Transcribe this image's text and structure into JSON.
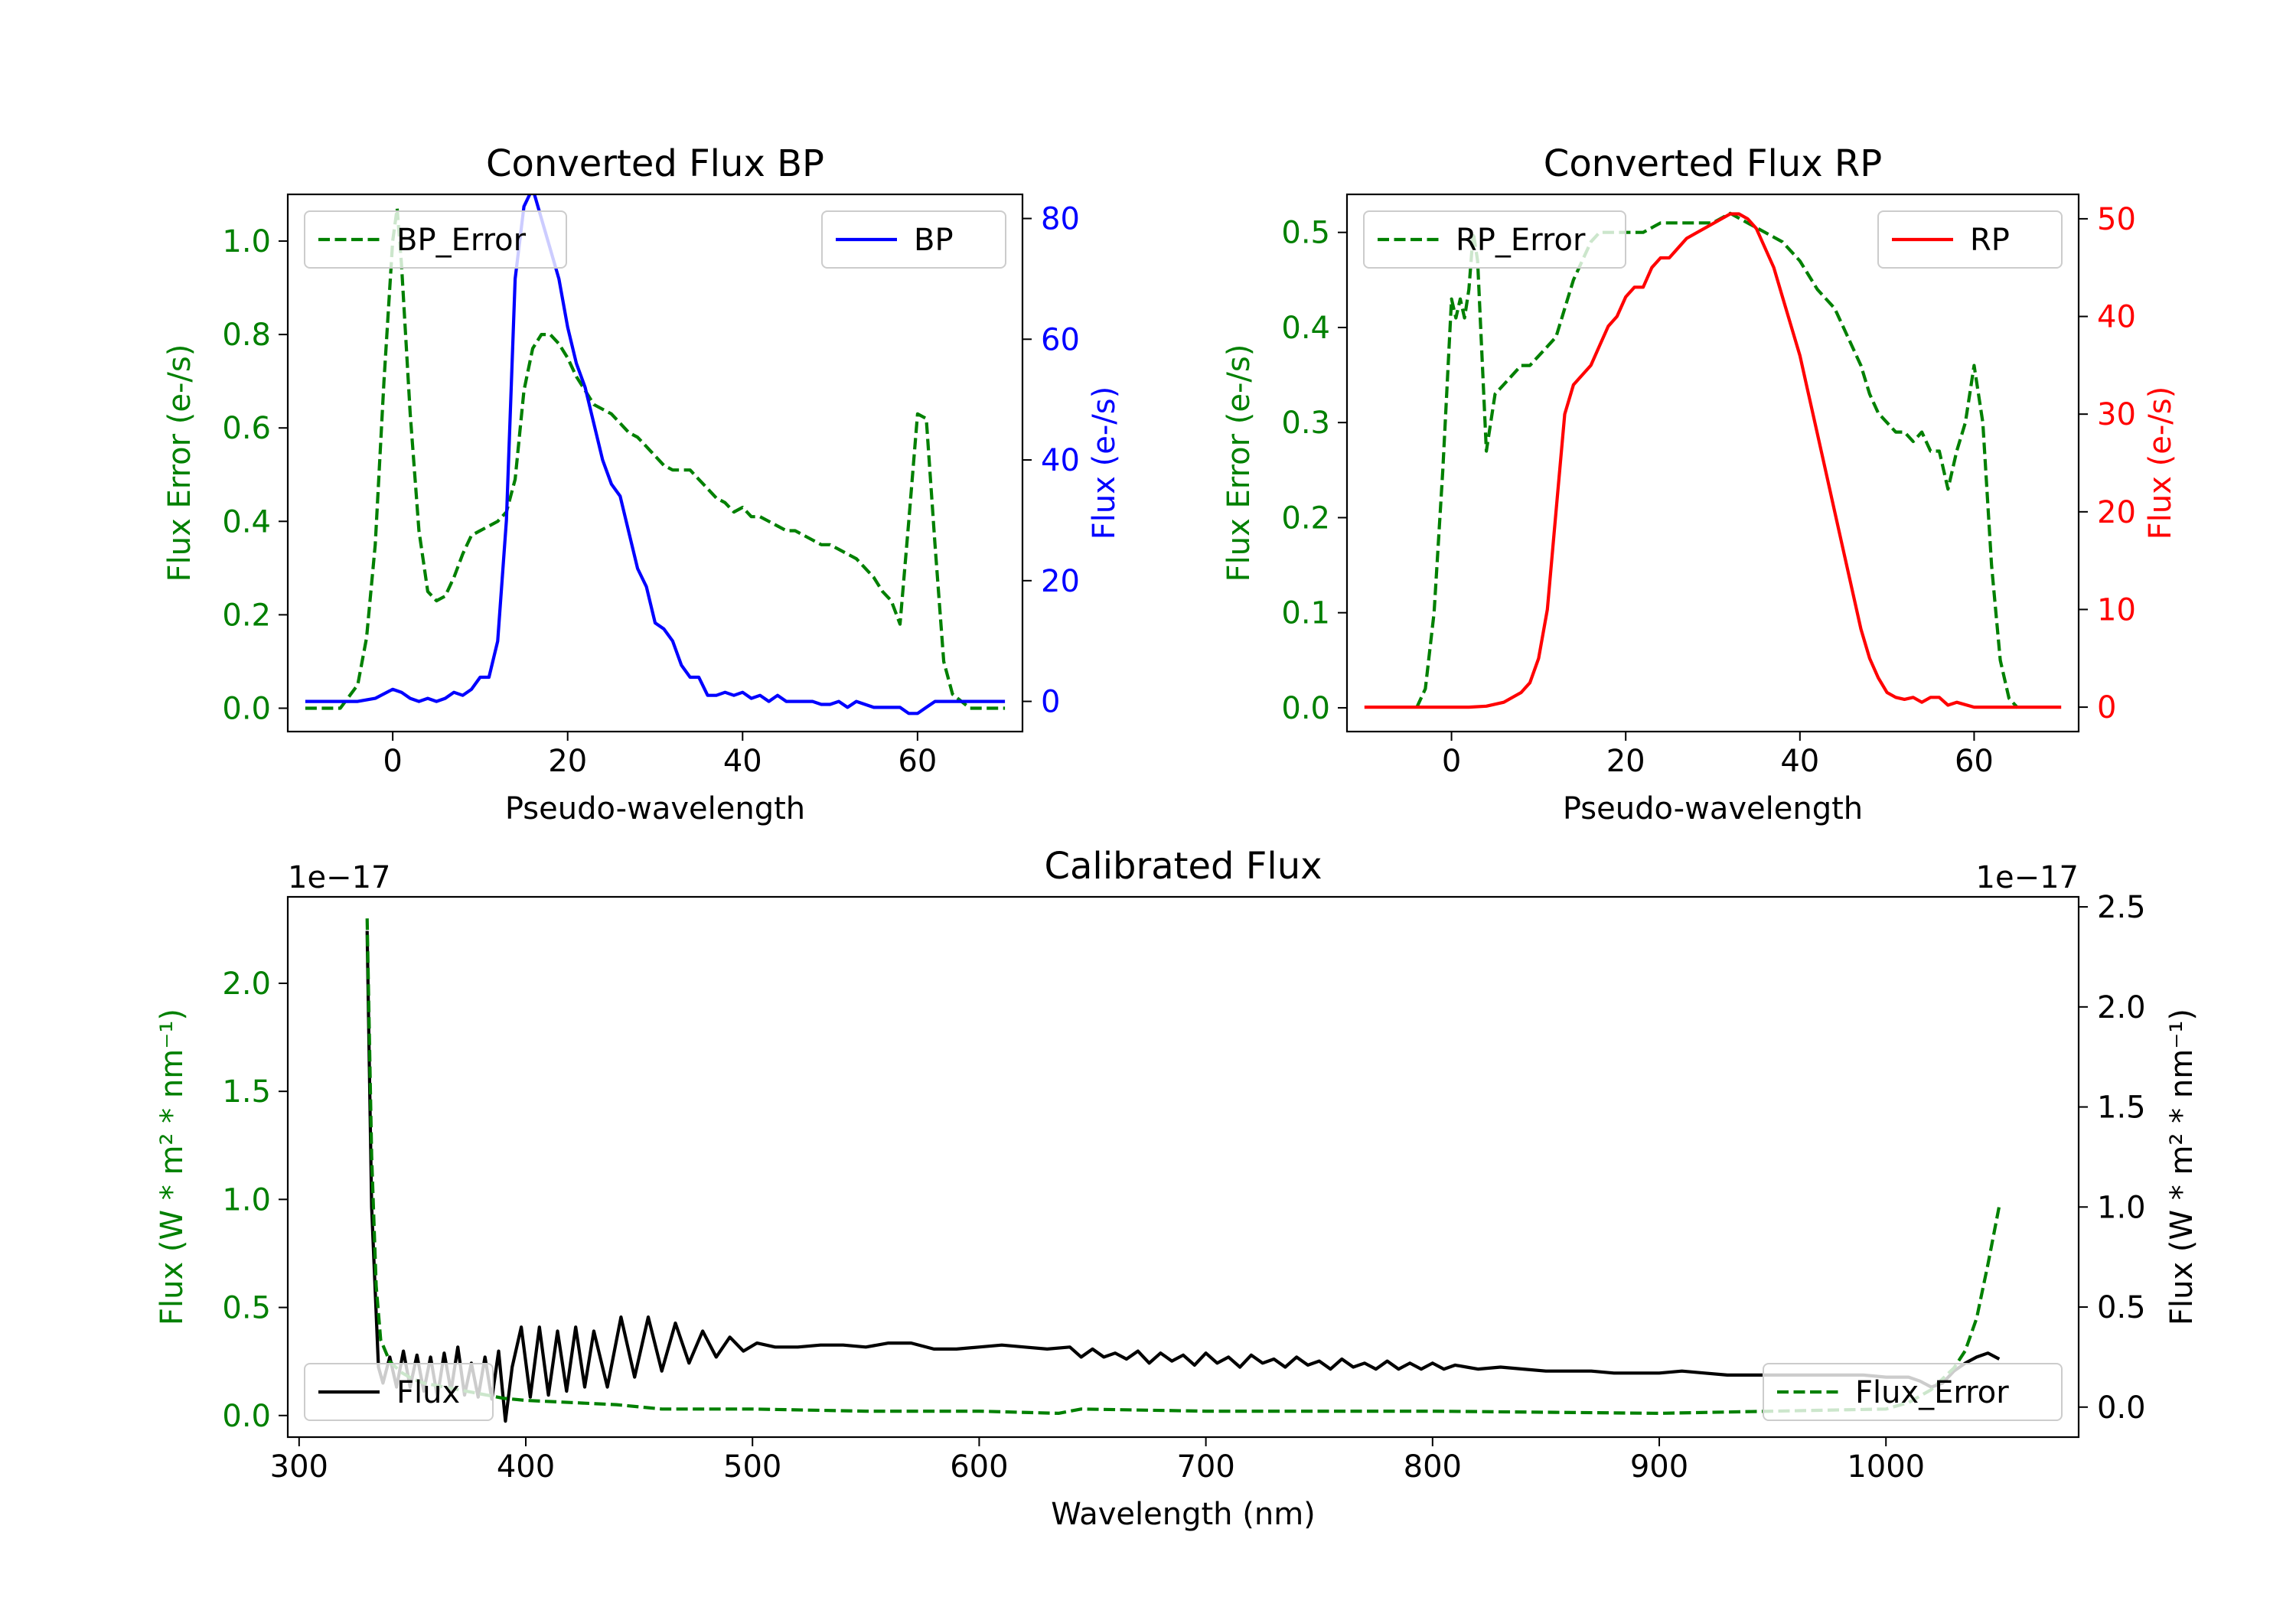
{
  "colors": {
    "error": "#008000",
    "bp": "#0000ff",
    "rp": "#ff0000",
    "flux": "#000000",
    "axis": "#000000"
  },
  "chart_data": [
    {
      "id": "bp",
      "type": "line",
      "title": "Converted Flux BP",
      "xlabel": "Pseudo-wavelength",
      "ylabel_left": "Flux Error (e-/s)",
      "ylabel_right": "Flux (e-/s)",
      "xlim": [
        -12,
        72
      ],
      "ylim_left": [
        -0.05,
        1.1
      ],
      "ylim_right": [
        -5,
        84
      ],
      "xticks": [
        0,
        20,
        40,
        60
      ],
      "xtick_labels": [
        "0",
        "20",
        "40",
        "60"
      ],
      "yticks_left": [
        0.0,
        0.2,
        0.4,
        0.6,
        0.8,
        1.0
      ],
      "ytick_labels_left": [
        "0.0",
        "0.2",
        "0.4",
        "0.6",
        "0.8",
        "1.0"
      ],
      "yticks_right": [
        0,
        20,
        40,
        60,
        80
      ],
      "ytick_labels_right": [
        "0",
        "20",
        "40",
        "60",
        "80"
      ],
      "series": [
        {
          "name": "BP_Error",
          "axis": "left",
          "style": "dashed",
          "color": "#008000",
          "x": [
            -10,
            -6,
            -4,
            -3,
            -2,
            -1,
            0,
            0.5,
            1,
            2,
            3,
            4,
            5,
            6,
            7,
            8,
            9,
            10,
            11,
            12,
            13,
            14,
            15,
            16,
            17,
            18,
            19,
            20,
            21,
            22,
            23,
            24,
            25,
            26,
            27,
            28,
            29,
            30,
            31,
            32,
            33,
            34,
            35,
            36,
            37,
            38,
            39,
            40,
            41,
            42,
            43,
            44,
            45,
            46,
            47,
            48,
            49,
            50,
            51,
            52,
            53,
            54,
            55,
            56,
            57,
            58,
            59,
            60,
            61,
            62,
            63,
            64,
            66,
            70
          ],
          "y": [
            0.0,
            0.0,
            0.05,
            0.15,
            0.35,
            0.7,
            1.0,
            1.07,
            0.95,
            0.63,
            0.38,
            0.25,
            0.23,
            0.24,
            0.28,
            0.33,
            0.37,
            0.38,
            0.39,
            0.4,
            0.42,
            0.49,
            0.68,
            0.77,
            0.8,
            0.8,
            0.78,
            0.75,
            0.71,
            0.68,
            0.65,
            0.64,
            0.63,
            0.61,
            0.59,
            0.58,
            0.56,
            0.54,
            0.52,
            0.51,
            0.51,
            0.51,
            0.49,
            0.47,
            0.45,
            0.44,
            0.42,
            0.43,
            0.41,
            0.41,
            0.4,
            0.39,
            0.38,
            0.38,
            0.37,
            0.36,
            0.35,
            0.35,
            0.34,
            0.33,
            0.32,
            0.3,
            0.28,
            0.25,
            0.23,
            0.18,
            0.4,
            0.63,
            0.62,
            0.35,
            0.1,
            0.03,
            0.0,
            0.0
          ]
        },
        {
          "name": "BP",
          "axis": "right",
          "style": "solid",
          "color": "#0000ff",
          "x": [
            -10,
            -4,
            -2,
            0,
            1,
            2,
            3,
            4,
            5,
            6,
            7,
            8,
            9,
            10,
            11,
            12,
            13,
            14,
            15,
            16,
            17,
            18,
            19,
            20,
            21,
            22,
            23,
            24,
            25,
            26,
            27,
            28,
            29,
            30,
            31,
            32,
            33,
            34,
            35,
            36,
            37,
            38,
            39,
            40,
            41,
            42,
            43,
            44,
            45,
            46,
            47,
            48,
            49,
            50,
            51,
            52,
            53,
            54,
            55,
            56,
            57,
            58,
            59,
            60,
            61,
            62,
            64,
            66,
            70
          ],
          "y": [
            0,
            0,
            0.5,
            2,
            1.5,
            0.5,
            0,
            0.5,
            0,
            0.5,
            1.5,
            1,
            2,
            4,
            4,
            10,
            30,
            70,
            82,
            85,
            80,
            75,
            70,
            62,
            56,
            52,
            46,
            40,
            36,
            34,
            28,
            22,
            19,
            13,
            12,
            10,
            6,
            4,
            4,
            1,
            1,
            1.5,
            1,
            1.5,
            0.5,
            1,
            0,
            1,
            0,
            0,
            0,
            0,
            -0.5,
            -0.5,
            0,
            -1,
            0,
            -0.5,
            -1,
            -1,
            -1,
            -1,
            -2,
            -2,
            -1,
            0,
            0,
            0,
            0
          ]
        }
      ],
      "legend": [
        {
          "label": "BP_Error",
          "position": "upper-left"
        },
        {
          "label": "BP",
          "position": "upper-right"
        }
      ]
    },
    {
      "id": "rp",
      "type": "line",
      "title": "Converted Flux RP",
      "xlabel": "Pseudo-wavelength",
      "ylabel_left": "Flux Error (e-/s)",
      "ylabel_right": "Flux (e-/s)",
      "xlim": [
        -12,
        72
      ],
      "ylim_left": [
        -0.025,
        0.54
      ],
      "ylim_right": [
        -2.5,
        52.5
      ],
      "xticks": [
        0,
        20,
        40,
        60
      ],
      "xtick_labels": [
        "0",
        "20",
        "40",
        "60"
      ],
      "yticks_left": [
        0.0,
        0.1,
        0.2,
        0.3,
        0.4,
        0.5
      ],
      "ytick_labels_left": [
        "0.0",
        "0.1",
        "0.2",
        "0.3",
        "0.4",
        "0.5"
      ],
      "yticks_right": [
        0,
        10,
        20,
        30,
        40,
        50
      ],
      "ytick_labels_right": [
        "0",
        "10",
        "20",
        "30",
        "40",
        "50"
      ],
      "series": [
        {
          "name": "RP_Error",
          "axis": "left",
          "style": "dashed",
          "color": "#008000",
          "x": [
            -4,
            -3,
            -2,
            -1,
            0,
            0.5,
            1,
            1.5,
            2,
            2.5,
            3,
            4,
            5,
            6,
            7,
            8,
            9,
            10,
            11,
            12,
            13,
            14,
            15,
            16,
            17,
            18,
            19,
            20,
            22,
            24,
            26,
            28,
            30,
            32,
            34,
            36,
            38,
            40,
            42,
            44,
            45,
            46,
            47,
            48,
            49,
            50,
            51,
            52,
            53,
            54,
            55,
            56,
            57,
            58,
            59,
            60,
            61,
            62,
            63,
            64,
            65
          ],
          "y": [
            0.0,
            0.02,
            0.1,
            0.25,
            0.43,
            0.41,
            0.43,
            0.41,
            0.44,
            0.5,
            0.47,
            0.27,
            0.33,
            0.34,
            0.35,
            0.36,
            0.36,
            0.37,
            0.38,
            0.39,
            0.42,
            0.45,
            0.47,
            0.49,
            0.5,
            0.5,
            0.5,
            0.5,
            0.5,
            0.51,
            0.51,
            0.51,
            0.51,
            0.52,
            0.51,
            0.5,
            0.49,
            0.47,
            0.44,
            0.42,
            0.4,
            0.38,
            0.36,
            0.33,
            0.31,
            0.3,
            0.29,
            0.29,
            0.28,
            0.29,
            0.27,
            0.27,
            0.23,
            0.27,
            0.3,
            0.36,
            0.3,
            0.15,
            0.05,
            0.01,
            0.0
          ]
        },
        {
          "name": "RP",
          "axis": "right",
          "style": "solid",
          "color": "#ff0000",
          "x": [
            -10,
            -5,
            0,
            2,
            4,
            6,
            7,
            8,
            9,
            10,
            11,
            12,
            13,
            14,
            15,
            16,
            17,
            18,
            19,
            20,
            21,
            22,
            23,
            24,
            25,
            26,
            27,
            28,
            29,
            30,
            31,
            32,
            33,
            34,
            35,
            36,
            37,
            38,
            39,
            40,
            41,
            42,
            43,
            44,
            45,
            46,
            47,
            48,
            49,
            50,
            51,
            52,
            53,
            54,
            55,
            56,
            57,
            58,
            60,
            62,
            64,
            66,
            70
          ],
          "y": [
            0,
            0,
            0,
            0,
            0.1,
            0.5,
            1,
            1.5,
            2.5,
            5,
            10,
            20,
            30,
            33,
            34,
            35,
            37,
            39,
            40,
            42,
            43,
            43,
            45,
            46,
            46,
            47,
            48,
            48.5,
            49,
            49.5,
            50,
            50.5,
            50.5,
            50,
            49,
            47,
            45,
            42,
            39,
            36,
            32,
            28,
            24,
            20,
            16,
            12,
            8,
            5,
            3,
            1.5,
            1,
            0.8,
            1,
            0.5,
            1,
            1,
            0.2,
            0.5,
            0,
            0,
            0,
            0,
            0
          ]
        }
      ],
      "legend": [
        {
          "label": "RP_Error",
          "position": "upper-left"
        },
        {
          "label": "RP",
          "position": "upper-right"
        }
      ]
    },
    {
      "id": "cal",
      "type": "line",
      "title": "Calibrated Flux",
      "xlabel": "Wavelength (nm)",
      "ylabel_left": "Flux (W * m² * nm⁻¹)",
      "ylabel_right": "Flux (W * m² * nm⁻¹)",
      "offset_label_left": "1e−17",
      "offset_label_right": "1e−17",
      "scale": 1e-17,
      "xlim": [
        295,
        1085
      ],
      "ylim_left": [
        -0.1,
        2.4
      ],
      "ylim_right": [
        -0.15,
        2.55
      ],
      "xticks": [
        300,
        400,
        500,
        600,
        700,
        800,
        900,
        1000
      ],
      "xtick_labels": [
        "300",
        "400",
        "500",
        "600",
        "700",
        "800",
        "900",
        "1000"
      ],
      "yticks_left": [
        0.0,
        0.5,
        1.0,
        1.5,
        2.0
      ],
      "ytick_labels_left": [
        "0.0",
        "0.5",
        "1.0",
        "1.5",
        "2.0"
      ],
      "yticks_right": [
        0.0,
        0.5,
        1.0,
        1.5,
        2.0,
        2.5
      ],
      "ytick_labels_right": [
        "0.0",
        "0.5",
        "1.0",
        "1.5",
        "2.0",
        "2.5"
      ],
      "series": [
        {
          "name": "Flux",
          "axis": "right",
          "style": "solid",
          "color": "#000000",
          "x": [
            330,
            332,
            335,
            337,
            340,
            343,
            346,
            349,
            352,
            355,
            358,
            361,
            364,
            367,
            370,
            373,
            376,
            379,
            382,
            385,
            388,
            391,
            394,
            398,
            402,
            406,
            410,
            414,
            418,
            422,
            426,
            430,
            436,
            442,
            448,
            454,
            460,
            466,
            472,
            478,
            484,
            490,
            496,
            502,
            510,
            520,
            530,
            540,
            550,
            560,
            570,
            580,
            590,
            600,
            610,
            620,
            630,
            640,
            645,
            650,
            655,
            660,
            665,
            670,
            675,
            680,
            685,
            690,
            695,
            700,
            705,
            710,
            715,
            720,
            725,
            730,
            735,
            740,
            745,
            750,
            755,
            760,
            765,
            770,
            775,
            780,
            785,
            790,
            795,
            800,
            805,
            810,
            815,
            820,
            830,
            840,
            850,
            860,
            870,
            880,
            890,
            900,
            910,
            920,
            930,
            940,
            950,
            960,
            970,
            980,
            990,
            1000,
            1005,
            1010,
            1015,
            1020,
            1025,
            1030,
            1035,
            1040,
            1045,
            1050
          ],
          "y": [
            2.38,
            1.0,
            0.2,
            0.12,
            0.25,
            0.1,
            0.28,
            0.1,
            0.26,
            0.08,
            0.25,
            0.05,
            0.27,
            0.08,
            0.3,
            0.06,
            0.22,
            0.05,
            0.25,
            0.04,
            0.28,
            -0.07,
            0.2,
            0.4,
            0.05,
            0.4,
            0.06,
            0.38,
            0.08,
            0.4,
            0.1,
            0.38,
            0.1,
            0.45,
            0.15,
            0.45,
            0.18,
            0.42,
            0.22,
            0.38,
            0.25,
            0.35,
            0.28,
            0.32,
            0.3,
            0.3,
            0.31,
            0.31,
            0.3,
            0.32,
            0.32,
            0.29,
            0.29,
            0.3,
            0.31,
            0.3,
            0.29,
            0.3,
            0.25,
            0.29,
            0.25,
            0.27,
            0.24,
            0.28,
            0.22,
            0.27,
            0.23,
            0.26,
            0.21,
            0.27,
            0.22,
            0.25,
            0.2,
            0.26,
            0.22,
            0.24,
            0.2,
            0.25,
            0.21,
            0.23,
            0.19,
            0.24,
            0.2,
            0.22,
            0.19,
            0.23,
            0.19,
            0.22,
            0.19,
            0.22,
            0.19,
            0.21,
            0.2,
            0.19,
            0.2,
            0.19,
            0.18,
            0.18,
            0.18,
            0.17,
            0.17,
            0.17,
            0.18,
            0.17,
            0.16,
            0.16,
            0.16,
            0.16,
            0.16,
            0.16,
            0.16,
            0.15,
            0.15,
            0.15,
            0.13,
            0.1,
            0.12,
            0.18,
            0.22,
            0.25,
            0.27,
            0.24
          ]
        },
        {
          "name": "Flux_Error",
          "axis": "left",
          "style": "dashed",
          "color": "#008000",
          "x": [
            330,
            332,
            334,
            336,
            340,
            345,
            350,
            355,
            360,
            365,
            370,
            375,
            380,
            385,
            390,
            400,
            420,
            440,
            460,
            480,
            500,
            550,
            600,
            635,
            645,
            700,
            800,
            900,
            950,
            1000,
            1010,
            1020,
            1030,
            1035,
            1040,
            1045,
            1050
          ],
          "y": [
            2.3,
            1.2,
            0.6,
            0.35,
            0.25,
            0.2,
            0.17,
            0.15,
            0.14,
            0.13,
            0.12,
            0.11,
            0.1,
            0.09,
            0.08,
            0.07,
            0.06,
            0.05,
            0.03,
            0.03,
            0.03,
            0.02,
            0.02,
            0.01,
            0.03,
            0.02,
            0.02,
            0.01,
            0.02,
            0.03,
            0.06,
            0.12,
            0.22,
            0.3,
            0.45,
            0.7,
            0.97
          ]
        }
      ],
      "legend": [
        {
          "label": "Flux",
          "position": "lower-left"
        },
        {
          "label": "Flux_Error",
          "position": "lower-right"
        }
      ]
    }
  ]
}
